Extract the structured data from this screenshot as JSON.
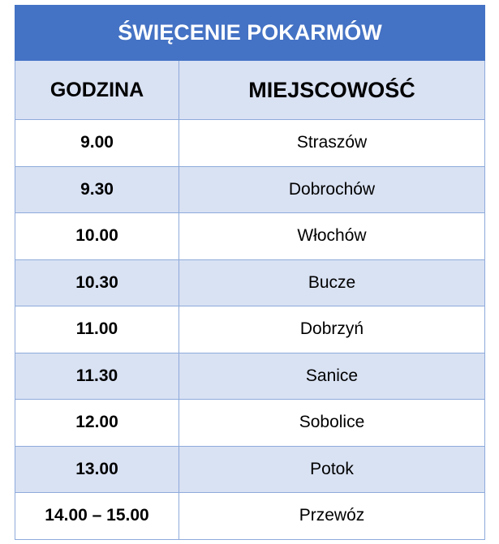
{
  "title": "ŚWIĘCENIE POKARMÓW",
  "columns": [
    "GODZINA",
    "MIEJSCOWOŚĆ"
  ],
  "rows": [
    {
      "time": "9.00",
      "place": "Straszów"
    },
    {
      "time": "9.30",
      "place": "Dobrochów"
    },
    {
      "time": "10.00",
      "place": "Włochów"
    },
    {
      "time": "10.30",
      "place": "Bucze"
    },
    {
      "time": "11.00",
      "place": "Dobrzyń"
    },
    {
      "time": "11.30",
      "place": "Sanice"
    },
    {
      "time": "12.00",
      "place": "Sobolice"
    },
    {
      "time": "13.00",
      "place": "Potok"
    },
    {
      "time": "14.00 – 15.00",
      "place": "Przewóz"
    }
  ],
  "colors": {
    "header": "#4472C4",
    "band": "#D9E2F3",
    "border": "#8EAADB"
  }
}
